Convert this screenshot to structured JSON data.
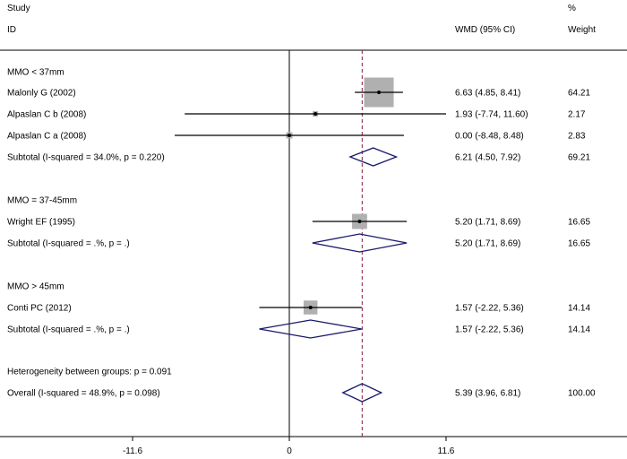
{
  "header": {
    "study": "Study",
    "id": "ID",
    "effect": "WMD (95% CI)",
    "pct": "%",
    "weight": "Weight"
  },
  "chart_data": {
    "type": "forest",
    "x_axis": {
      "ticks": [
        -11.6,
        0,
        11.6
      ],
      "tick_labels": [
        "-11.6",
        "0",
        "11.6"
      ]
    },
    "overall_effect": 5.39,
    "rows": [
      {
        "kind": "group",
        "label": "MMO < 37mm"
      },
      {
        "kind": "study",
        "label": "Malonly G (2002)",
        "est": 6.63,
        "lo": 4.85,
        "hi": 8.41,
        "ci_text": "6.63 (4.85, 8.41)",
        "weight": 64.21,
        "weight_text": "64.21"
      },
      {
        "kind": "study",
        "label": "Alpaslan C b (2008)",
        "est": 1.93,
        "lo": -7.74,
        "hi": 11.6,
        "ci_text": "1.93 (-7.74, 11.60)",
        "weight": 2.17,
        "weight_text": "2.17"
      },
      {
        "kind": "study",
        "label": "Alpaslan C a (2008)",
        "est": 0.0,
        "lo": -8.48,
        "hi": 8.48,
        "ci_text": "0.00 (-8.48, 8.48)",
        "weight": 2.83,
        "weight_text": "2.83"
      },
      {
        "kind": "subtotal",
        "label": "Subtotal  (I-squared = 34.0%, p = 0.220)",
        "est": 6.21,
        "lo": 4.5,
        "hi": 7.92,
        "ci_text": "6.21 (4.50, 7.92)",
        "weight": 69.21,
        "weight_text": "69.21"
      },
      {
        "kind": "group",
        "label": "MMO = 37-45mm"
      },
      {
        "kind": "study",
        "label": "Wright EF (1995)",
        "est": 5.2,
        "lo": 1.71,
        "hi": 8.69,
        "ci_text": "5.20 (1.71, 8.69)",
        "weight": 16.65,
        "weight_text": "16.65"
      },
      {
        "kind": "subtotal",
        "label": "Subtotal  (I-squared = .%, p = .)",
        "est": 5.2,
        "lo": 1.71,
        "hi": 8.69,
        "ci_text": "5.20 (1.71, 8.69)",
        "weight": 16.65,
        "weight_text": "16.65"
      },
      {
        "kind": "group",
        "label": "MMO > 45mm"
      },
      {
        "kind": "study",
        "label": "Conti PC (2012)",
        "est": 1.57,
        "lo": -2.22,
        "hi": 5.36,
        "ci_text": "1.57 (-2.22, 5.36)",
        "weight": 14.14,
        "weight_text": "14.14"
      },
      {
        "kind": "subtotal",
        "label": "Subtotal  (I-squared = .%, p = .)",
        "est": 1.57,
        "lo": -2.22,
        "hi": 5.36,
        "ci_text": "1.57 (-2.22, 5.36)",
        "weight": 14.14,
        "weight_text": "14.14"
      },
      {
        "kind": "note",
        "label": "Heterogeneity between groups: p = 0.091"
      },
      {
        "kind": "overall",
        "label": "Overall  (I-squared = 48.9%, p = 0.098)",
        "est": 5.39,
        "lo": 3.96,
        "hi": 6.81,
        "ci_text": "5.39 (3.96, 6.81)",
        "weight": 100.0,
        "weight_text": "100.00"
      }
    ],
    "colors": {
      "diamond": "#1a1a6e",
      "marker": "#b0b0b0",
      "overall_line": "#8b1a3a"
    }
  }
}
